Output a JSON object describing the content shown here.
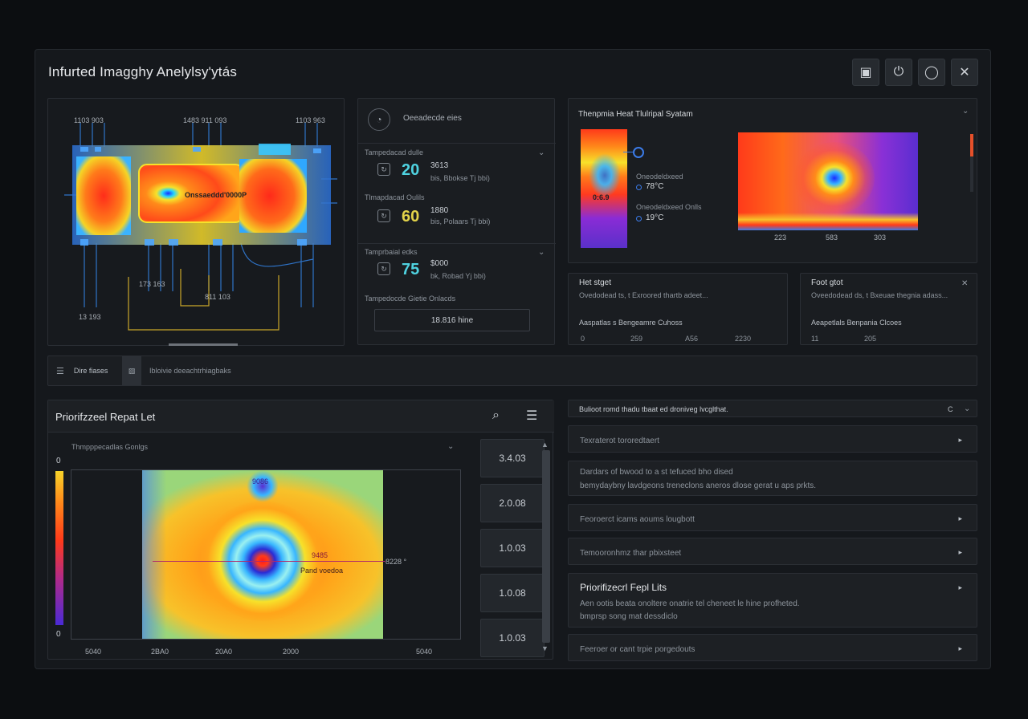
{
  "window": {
    "title": "Infurted Imagghy Anelylsy'ytás",
    "buttons": [
      {
        "name": "window-layout-icon",
        "glyph": "▣"
      },
      {
        "name": "power-icon",
        "glyph": "⏻"
      },
      {
        "name": "circle-icon",
        "glyph": "◯"
      },
      {
        "name": "close-icon",
        "glyph": "✕"
      }
    ]
  },
  "schematic": {
    "labels": {
      "top_left": "1103  903",
      "top_mid": "1483  911  093",
      "top_right": "1103  963",
      "center": "Onssaeddd'0000P",
      "bottom_left": "173  163",
      "bottom_mid": "811  103",
      "bottom_far_left": "13    193"
    }
  },
  "stats": {
    "header": "Oeeadecde  eies",
    "items": [
      {
        "title": "Tampedacad  dulle",
        "value": "20",
        "color": "#4fd2e0",
        "line1": "3613",
        "line2": "bis,  Bbokse  Tj  bbi)"
      },
      {
        "title": "Tlmapdacad  Oulils",
        "value": "60",
        "color": "#e2d34a",
        "line1": "1880",
        "line2": "bis,  Polaars  Tj  bbi)"
      },
      {
        "title": "Tamprbaial  edks",
        "value": "75",
        "color": "#4fd2e0",
        "line1": "$000",
        "line2": "bk,  Robad  Yj  bbi)"
      }
    ],
    "footer_title": "Tampedocde  Gietie  Onlacds",
    "footer_value": "18.816  hine"
  },
  "thermal_system": {
    "title": "Thenpmia  Heat  Tlulripal  Syatam",
    "marker_label": "0:6.9",
    "readout1_label": "Oneodeldxeed",
    "readout1_value": "78°C",
    "readout2_label": "Oneodeldxeed  Onlls",
    "readout2_value": "19°C",
    "axis_ticks": [
      "223",
      "583",
      "303"
    ]
  },
  "hotspot_left": {
    "title": "Het  stget",
    "desc": "Ovedodead  ts,  t  Exroored  thartb  adeet...",
    "sub": "Aaspatlas  s  Bengeamre  Cuhoss",
    "values": [
      "0",
      "259",
      "A56",
      "2230"
    ]
  },
  "hotspot_right": {
    "title": "Foot  gtot",
    "desc": "Oveedodead  ds,  t  Bxeuae  thegnia  adass...",
    "sub": "Aeapetlals  Benpania  Clcoes",
    "values": [
      "11",
      "205"
    ]
  },
  "tabs": {
    "tab1": "Dire  fiases",
    "tab2": "Ibloivie  deeachtrhiagbaks"
  },
  "report": {
    "title": "Priorifzzeel  Repat  Let",
    "dropdown": "Thmpppecadlas  Gonlgs",
    "scale_top": "0",
    "scale_bottom": "0",
    "heat_label_top": "9086",
    "heat_label_mid": "9485",
    "heat_label_sub": "Pand  voedoa",
    "heat_label_right": "8228 °",
    "x_ticks": [
      "5040",
      "2BA0",
      "20A0",
      "2000",
      "5040"
    ],
    "scale_buttons": [
      "3.4.03",
      "2.0.08",
      "1.0.03",
      "1.0.08",
      "1.0.03"
    ]
  },
  "list": {
    "header": "Bulioot  romd  thadu  tbaat  ed  droniveg  lvcglthat.",
    "header_right": "C",
    "rows": [
      {
        "label": "Texraterot  tororedtaert"
      },
      {
        "label": "Dardars  of  bwood  to  a  st  tefuced  bho  dised",
        "label2": "bemydaybny  lavdgeons  treneclons  aneros  dlose  gerat  u  aps  prkts."
      },
      {
        "label": "Feoroerct  icams  aoums  lougbott"
      },
      {
        "label": "Temooronhmz  thar  pbixsteet"
      },
      {
        "label": "Priorifizecrl  Fepl  Lits",
        "label2": "Aen  ootis  beata  onoltere  onatrie  tel  cheneet  le  hine  profheted.",
        "label3": "bmprsp  song  mat  dessdiclo"
      },
      {
        "label": "Feeroer  or  cant  trpie  porgedouts"
      }
    ]
  }
}
